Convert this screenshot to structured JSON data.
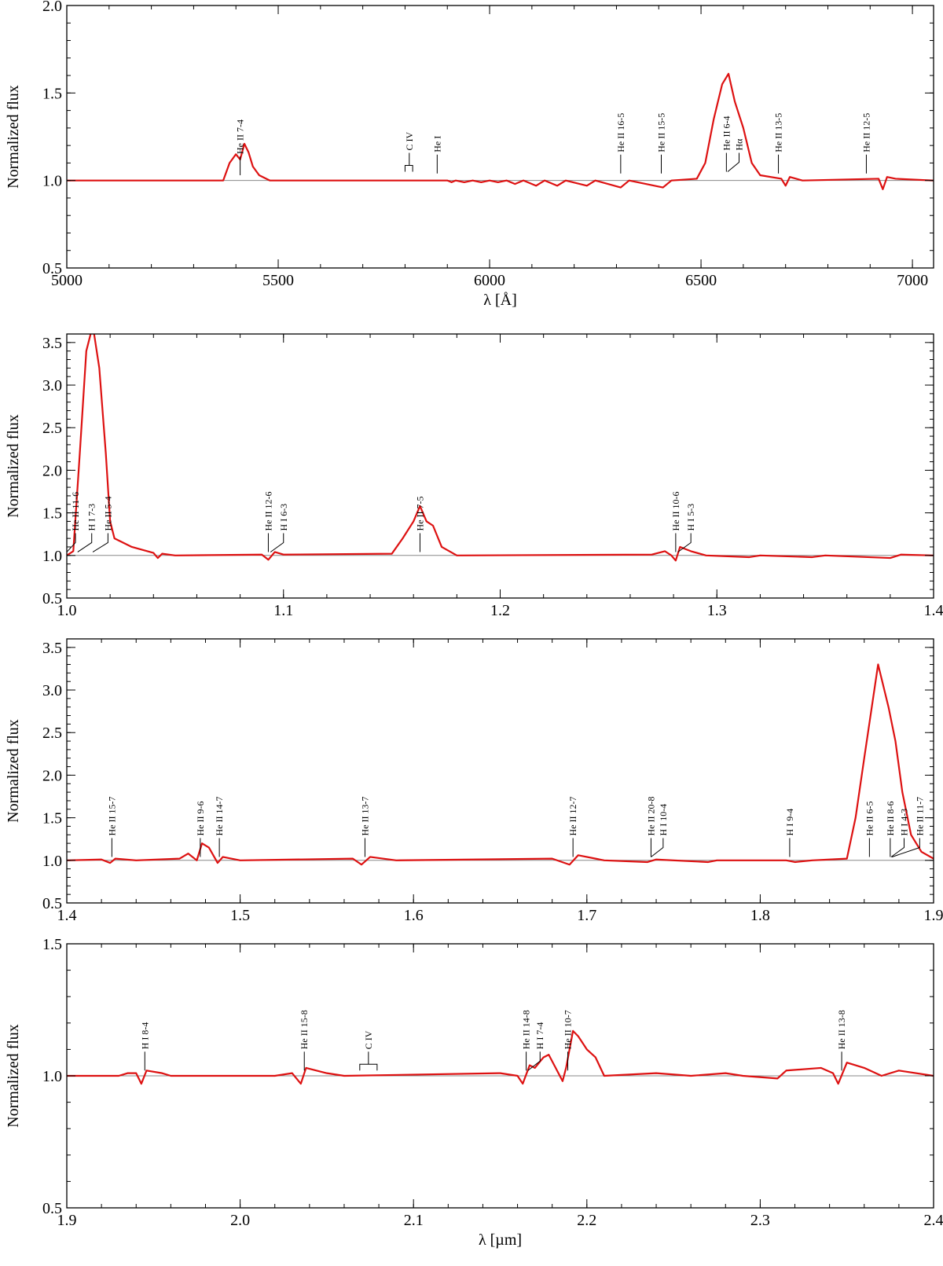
{
  "colors": {
    "spectrum": "#dd1111",
    "continuum": "#888888",
    "frame": "#000000"
  },
  "chart_data": [
    {
      "type": "line",
      "xlabel": "λ [Å]",
      "ylabel": "Normalized flux",
      "xlim": [
        5000,
        7050
      ],
      "ylim": [
        0.5,
        2.0
      ],
      "xticks": [
        5000,
        5500,
        6000,
        6500,
        7000
      ],
      "xtick_labels": [
        "5000",
        "5500",
        "6000",
        "6500",
        "7000"
      ],
      "yticks": [
        0.5,
        1.0,
        1.5,
        2.0
      ],
      "ytick_labels": [
        "0.5",
        "1.0",
        "1.5",
        "2.0"
      ],
      "x_minor_step": 100,
      "y_minor_step": 0.1,
      "continuum": 1.0,
      "series": [
        {
          "points": [
            [
              5000,
              1.0
            ],
            [
              5370,
              1.0
            ],
            [
              5385,
              1.1
            ],
            [
              5400,
              1.15
            ],
            [
              5410,
              1.12
            ],
            [
              5420,
              1.21
            ],
            [
              5430,
              1.16
            ],
            [
              5440,
              1.08
            ],
            [
              5455,
              1.03
            ],
            [
              5480,
              1.0
            ],
            [
              5900,
              1.0
            ],
            [
              5910,
              0.99
            ],
            [
              5920,
              1.0
            ],
            [
              5940,
              0.99
            ],
            [
              5960,
              1.0
            ],
            [
              5980,
              0.99
            ],
            [
              6000,
              1.0
            ],
            [
              6020,
              0.99
            ],
            [
              6040,
              1.0
            ],
            [
              6060,
              0.98
            ],
            [
              6080,
              1.0
            ],
            [
              6110,
              0.97
            ],
            [
              6130,
              1.0
            ],
            [
              6160,
              0.97
            ],
            [
              6180,
              1.0
            ],
            [
              6230,
              0.97
            ],
            [
              6250,
              1.0
            ],
            [
              6310,
              0.96
            ],
            [
              6330,
              1.0
            ],
            [
              6410,
              0.96
            ],
            [
              6430,
              1.0
            ],
            [
              6490,
              1.01
            ],
            [
              6510,
              1.1
            ],
            [
              6530,
              1.35
            ],
            [
              6550,
              1.55
            ],
            [
              6565,
              1.61
            ],
            [
              6580,
              1.45
            ],
            [
              6600,
              1.3
            ],
            [
              6620,
              1.1
            ],
            [
              6640,
              1.03
            ],
            [
              6690,
              1.01
            ],
            [
              6700,
              0.97
            ],
            [
              6710,
              1.02
            ],
            [
              6740,
              1.0
            ],
            [
              6920,
              1.01
            ],
            [
              6930,
              0.95
            ],
            [
              6940,
              1.02
            ],
            [
              6960,
              1.01
            ],
            [
              7050,
              1.0
            ]
          ]
        }
      ],
      "labels": [
        {
          "text": "He II 7-4",
          "x": 5410,
          "ys": 1.03
        },
        {
          "text": "C IV",
          "x": 5810,
          "ys": 1.05,
          "bracket": [
            5800,
            5818
          ]
        },
        {
          "text": "He I",
          "x": 5876,
          "ys": 1.04
        },
        {
          "text": "He II 16-5",
          "x": 6310,
          "ys": 1.04
        },
        {
          "text": "He II 15-5",
          "x": 6406,
          "ys": 1.04
        },
        {
          "text": "He II 6-4",
          "x": 6560,
          "ys": 1.05
        },
        {
          "text": "Hα",
          "x": 6590,
          "ys": 1.05,
          "lx": 6563
        },
        {
          "text": "He II 13-5",
          "x": 6683,
          "ys": 1.04
        },
        {
          "text": "He II 12-5",
          "x": 6891,
          "ys": 1.04
        }
      ]
    },
    {
      "type": "line",
      "xlabel": "",
      "ylabel": "Normalized flux",
      "xlim": [
        1.0,
        1.4
      ],
      "ylim": [
        0.5,
        3.6
      ],
      "xticks": [
        1.0,
        1.1,
        1.2,
        1.3,
        1.4
      ],
      "xtick_labels": [
        "1.0",
        "1.1",
        "1.2",
        "1.3",
        "1.4"
      ],
      "yticks": [
        0.5,
        1.0,
        1.5,
        2.0,
        2.5,
        3.0,
        3.5
      ],
      "ytick_labels": [
        "0.5",
        "1.0",
        "1.5",
        "2.0",
        "2.5",
        "3.0",
        "3.5"
      ],
      "x_minor_step": 0.02,
      "y_minor_step": 0.1,
      "continuum": 1.0,
      "series": [
        {
          "points": [
            [
              1.0,
              1.0
            ],
            [
              1.003,
              1.05
            ],
            [
              1.006,
              2.2
            ],
            [
              1.009,
              3.4
            ],
            [
              1.012,
              3.7
            ],
            [
              1.015,
              3.2
            ],
            [
              1.018,
              2.2
            ],
            [
              1.02,
              1.4
            ],
            [
              1.022,
              1.2
            ],
            [
              1.03,
              1.1
            ],
            [
              1.04,
              1.03
            ],
            [
              1.042,
              0.97
            ],
            [
              1.044,
              1.02
            ],
            [
              1.05,
              1.0
            ],
            [
              1.09,
              1.01
            ],
            [
              1.093,
              0.95
            ],
            [
              1.096,
              1.04
            ],
            [
              1.1,
              1.01
            ],
            [
              1.15,
              1.02
            ],
            [
              1.155,
              1.2
            ],
            [
              1.16,
              1.4
            ],
            [
              1.163,
              1.58
            ],
            [
              1.166,
              1.4
            ],
            [
              1.169,
              1.35
            ],
            [
              1.173,
              1.1
            ],
            [
              1.18,
              1.0
            ],
            [
              1.27,
              1.01
            ],
            [
              1.276,
              1.05
            ],
            [
              1.279,
              1.0
            ],
            [
              1.281,
              0.94
            ],
            [
              1.283,
              1.1
            ],
            [
              1.288,
              1.05
            ],
            [
              1.295,
              1.0
            ],
            [
              1.315,
              0.98
            ],
            [
              1.32,
              1.0
            ],
            [
              1.344,
              0.98
            ],
            [
              1.35,
              1.0
            ],
            [
              1.38,
              0.97
            ],
            [
              1.385,
              1.01
            ],
            [
              1.4,
              1.0
            ]
          ]
        }
      ],
      "labels": [
        {
          "text": "He II 11-6",
          "x": 1.004,
          "ys": 1.04,
          "lx": 1.0
        },
        {
          "text": "H I 7-3",
          "x": 1.0115,
          "ys": 1.04,
          "lx": 1.005
        },
        {
          "text": "He II 5-4",
          "x": 1.019,
          "ys": 1.04,
          "lx": 1.012
        },
        {
          "text": "He II 12-6",
          "x": 1.093,
          "ys": 1.04
        },
        {
          "text": "H I 6-3",
          "x": 1.1,
          "ys": 1.04,
          "lx": 1.094
        },
        {
          "text": "He II 7-5",
          "x": 1.163,
          "ys": 1.04
        },
        {
          "text": "He II 10-6",
          "x": 1.281,
          "ys": 1.04
        },
        {
          "text": "H I 5-3",
          "x": 1.288,
          "ys": 1.04,
          "lx": 1.282
        }
      ]
    },
    {
      "type": "line",
      "xlabel": "",
      "ylabel": "Normalized flux",
      "xlim": [
        1.4,
        1.9
      ],
      "ylim": [
        0.5,
        3.6
      ],
      "xticks": [
        1.4,
        1.5,
        1.6,
        1.7,
        1.8,
        1.9
      ],
      "xtick_labels": [
        "1.4",
        "1.5",
        "1.6",
        "1.7",
        "1.8",
        "1.9"
      ],
      "yticks": [
        0.5,
        1.0,
        1.5,
        2.0,
        2.5,
        3.0,
        3.5
      ],
      "ytick_labels": [
        "0.5",
        "1.0",
        "1.5",
        "2.0",
        "2.5",
        "3.0",
        "3.5"
      ],
      "x_minor_step": 0.02,
      "y_minor_step": 0.1,
      "continuum": 1.0,
      "series": [
        {
          "points": [
            [
              1.4,
              1.0
            ],
            [
              1.42,
              1.01
            ],
            [
              1.425,
              0.97
            ],
            [
              1.428,
              1.02
            ],
            [
              1.44,
              1.0
            ],
            [
              1.465,
              1.02
            ],
            [
              1.47,
              1.08
            ],
            [
              1.475,
              1.0
            ],
            [
              1.478,
              1.2
            ],
            [
              1.482,
              1.15
            ],
            [
              1.487,
              0.97
            ],
            [
              1.49,
              1.04
            ],
            [
              1.5,
              1.0
            ],
            [
              1.565,
              1.02
            ],
            [
              1.57,
              0.95
            ],
            [
              1.575,
              1.04
            ],
            [
              1.59,
              1.0
            ],
            [
              1.68,
              1.02
            ],
            [
              1.69,
              0.95
            ],
            [
              1.695,
              1.06
            ],
            [
              1.705,
              1.02
            ],
            [
              1.71,
              1.0
            ],
            [
              1.735,
              0.98
            ],
            [
              1.74,
              1.01
            ],
            [
              1.77,
              0.98
            ],
            [
              1.775,
              1.0
            ],
            [
              1.815,
              1.0
            ],
            [
              1.82,
              0.98
            ],
            [
              1.83,
              1.0
            ],
            [
              1.85,
              1.02
            ],
            [
              1.855,
              1.5
            ],
            [
              1.86,
              2.2
            ],
            [
              1.868,
              3.3
            ],
            [
              1.874,
              2.8
            ],
            [
              1.878,
              2.4
            ],
            [
              1.882,
              1.8
            ],
            [
              1.887,
              1.3
            ],
            [
              1.893,
              1.1
            ],
            [
              1.9,
              1.02
            ]
          ]
        }
      ],
      "labels": [
        {
          "text": "He II 15-7",
          "x": 1.426,
          "ys": 1.04
        },
        {
          "text": "He II 9-6",
          "x": 1.477,
          "ys": 1.04
        },
        {
          "text": "He II 14-7",
          "x": 1.488,
          "ys": 1.04
        },
        {
          "text": "He II 13-7",
          "x": 1.572,
          "ys": 1.04
        },
        {
          "text": "He II 12-7",
          "x": 1.692,
          "ys": 1.04
        },
        {
          "text": "He II 20-8",
          "x": 1.737,
          "ys": 1.04
        },
        {
          "text": "H I 10-4",
          "x": 1.744,
          "ys": 1.04,
          "lx": 1.737
        },
        {
          "text": "H I 9-4",
          "x": 1.817,
          "ys": 1.04
        },
        {
          "text": "He II 6-5",
          "x": 1.863,
          "ys": 1.04
        },
        {
          "text": "He II 8-6",
          "x": 1.875,
          "ys": 1.04
        },
        {
          "text": "H I 4-3",
          "x": 1.883,
          "ys": 1.04,
          "lx": 1.8755
        },
        {
          "text": "He II 11-7",
          "x": 1.892,
          "ys": 1.04,
          "lx": 1.876
        }
      ]
    },
    {
      "type": "line",
      "xlabel": "λ [µm]",
      "ylabel": "Normalized flux",
      "xlim": [
        1.9,
        2.4
      ],
      "ylim": [
        0.5,
        1.5
      ],
      "xticks": [
        1.9,
        2.0,
        2.1,
        2.2,
        2.3,
        2.4
      ],
      "xtick_labels": [
        "1.9",
        "2.0",
        "2.1",
        "2.2",
        "2.3",
        "2.4"
      ],
      "yticks": [
        0.5,
        1.0,
        1.5
      ],
      "ytick_labels": [
        "0.5",
        "1.0",
        "1.5"
      ],
      "x_minor_step": 0.02,
      "y_minor_step": 0.1,
      "continuum": 1.0,
      "series": [
        {
          "points": [
            [
              1.9,
              1.0
            ],
            [
              1.93,
              1.0
            ],
            [
              1.935,
              1.01
            ],
            [
              1.94,
              1.01
            ],
            [
              1.943,
              0.97
            ],
            [
              1.946,
              1.02
            ],
            [
              1.955,
              1.01
            ],
            [
              1.96,
              1.0
            ],
            [
              2.02,
              1.0
            ],
            [
              2.03,
              1.01
            ],
            [
              2.035,
              0.97
            ],
            [
              2.038,
              1.03
            ],
            [
              2.05,
              1.01
            ],
            [
              2.06,
              1.0
            ],
            [
              2.15,
              1.01
            ],
            [
              2.16,
              1.0
            ],
            [
              2.163,
              0.97
            ],
            [
              2.167,
              1.04
            ],
            [
              2.17,
              1.03
            ],
            [
              2.175,
              1.07
            ],
            [
              2.178,
              1.08
            ],
            [
              2.182,
              1.03
            ],
            [
              2.186,
              0.98
            ],
            [
              2.188,
              1.03
            ],
            [
              2.192,
              1.17
            ],
            [
              2.195,
              1.15
            ],
            [
              2.2,
              1.1
            ],
            [
              2.205,
              1.07
            ],
            [
              2.21,
              1.0
            ],
            [
              2.24,
              1.01
            ],
            [
              2.26,
              1.0
            ],
            [
              2.28,
              1.01
            ],
            [
              2.29,
              1.0
            ],
            [
              2.31,
              0.99
            ],
            [
              2.315,
              1.02
            ],
            [
              2.335,
              1.03
            ],
            [
              2.342,
              1.01
            ],
            [
              2.345,
              0.97
            ],
            [
              2.35,
              1.05
            ],
            [
              2.36,
              1.03
            ],
            [
              2.37,
              1.0
            ],
            [
              2.38,
              1.02
            ],
            [
              2.4,
              1.0
            ]
          ]
        }
      ],
      "labels": [
        {
          "text": "H I 8-4",
          "x": 1.945,
          "ys": 1.02
        },
        {
          "text": "He II 15-8",
          "x": 2.037,
          "ys": 1.02
        },
        {
          "text": "C IV",
          "x": 2.074,
          "ys": 1.02,
          "bracket": [
            2.069,
            2.079
          ]
        },
        {
          "text": "He II 14-8",
          "x": 2.165,
          "ys": 1.02
        },
        {
          "text": "H I 7-4",
          "x": 2.173,
          "ys": 1.02,
          "lx": 2.166
        },
        {
          "text": "He II 10-7",
          "x": 2.189,
          "ys": 1.02
        },
        {
          "text": "He II 13-8",
          "x": 2.347,
          "ys": 1.02
        }
      ]
    }
  ]
}
